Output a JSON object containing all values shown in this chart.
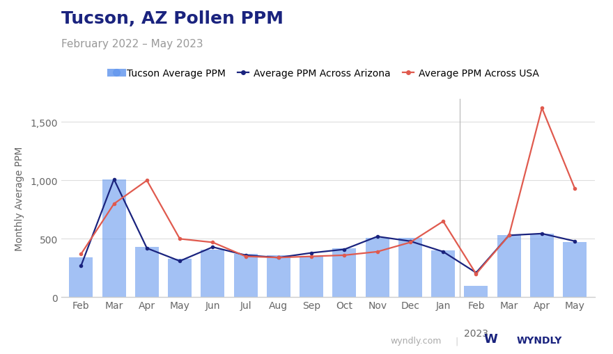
{
  "title": "Tucson, AZ Pollen PPM",
  "subtitle": "February 2022 – May 2023",
  "ylabel": "Monthly Average PPM",
  "months": [
    "Feb",
    "Mar",
    "Apr",
    "May",
    "Jun",
    "Jul",
    "Aug",
    "Sep",
    "Oct",
    "Nov",
    "Dec",
    "Jan",
    "Feb",
    "Mar",
    "Apr",
    "May"
  ],
  "year_label": "2023",
  "vline_pos": 11.5,
  "bar_values": [
    340,
    1010,
    430,
    330,
    410,
    370,
    360,
    350,
    420,
    510,
    510,
    400,
    100,
    530,
    545,
    470
  ],
  "arizona_ppm": [
    270,
    1010,
    420,
    310,
    430,
    360,
    340,
    380,
    410,
    520,
    480,
    390,
    210,
    530,
    545,
    480
  ],
  "usa_ppm": [
    370,
    800,
    1000,
    500,
    470,
    350,
    340,
    350,
    360,
    390,
    470,
    650,
    200,
    530,
    1620,
    930
  ],
  "bar_color": "#6699EE",
  "bar_alpha": 0.6,
  "arizona_color": "#1a237e",
  "usa_color": "#e05a4e",
  "background_color": "#ffffff",
  "grid_color": "#dddddd",
  "ylim": [
    0,
    1700
  ],
  "yticks": [
    0,
    500,
    1000,
    1500
  ],
  "ytick_labels": [
    "0",
    "500",
    "1,000",
    "1,500"
  ],
  "title_fontsize": 18,
  "subtitle_fontsize": 11,
  "legend_fontsize": 10,
  "axis_label_fontsize": 10,
  "tick_fontsize": 10,
  "title_color": "#1a237e",
  "subtitle_color": "#999999",
  "tick_color": "#666666",
  "watermark_color": "#aaaaaa"
}
